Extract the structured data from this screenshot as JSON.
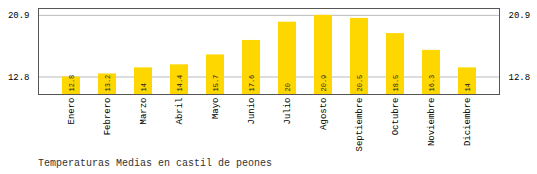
{
  "chart_data": {
    "type": "bar",
    "title": "Temperaturas Medias en castil de peones",
    "categories": [
      "Enero",
      "Febrero",
      "Marzo",
      "Abril",
      "Mayo",
      "Junio",
      "Julio",
      "Agosto",
      "Septiembre",
      "Octubre",
      "Noviembre",
      "Diciembre"
    ],
    "values": [
      12.8,
      13.2,
      14.0,
      14.4,
      15.7,
      17.6,
      20.0,
      20.9,
      20.5,
      18.5,
      16.3,
      14.0
    ],
    "color": "#FFD700",
    "ylim": [
      10.5,
      21.8
    ],
    "yticks": [
      12.8,
      20.9
    ],
    "grid": true,
    "data_labels": true
  }
}
